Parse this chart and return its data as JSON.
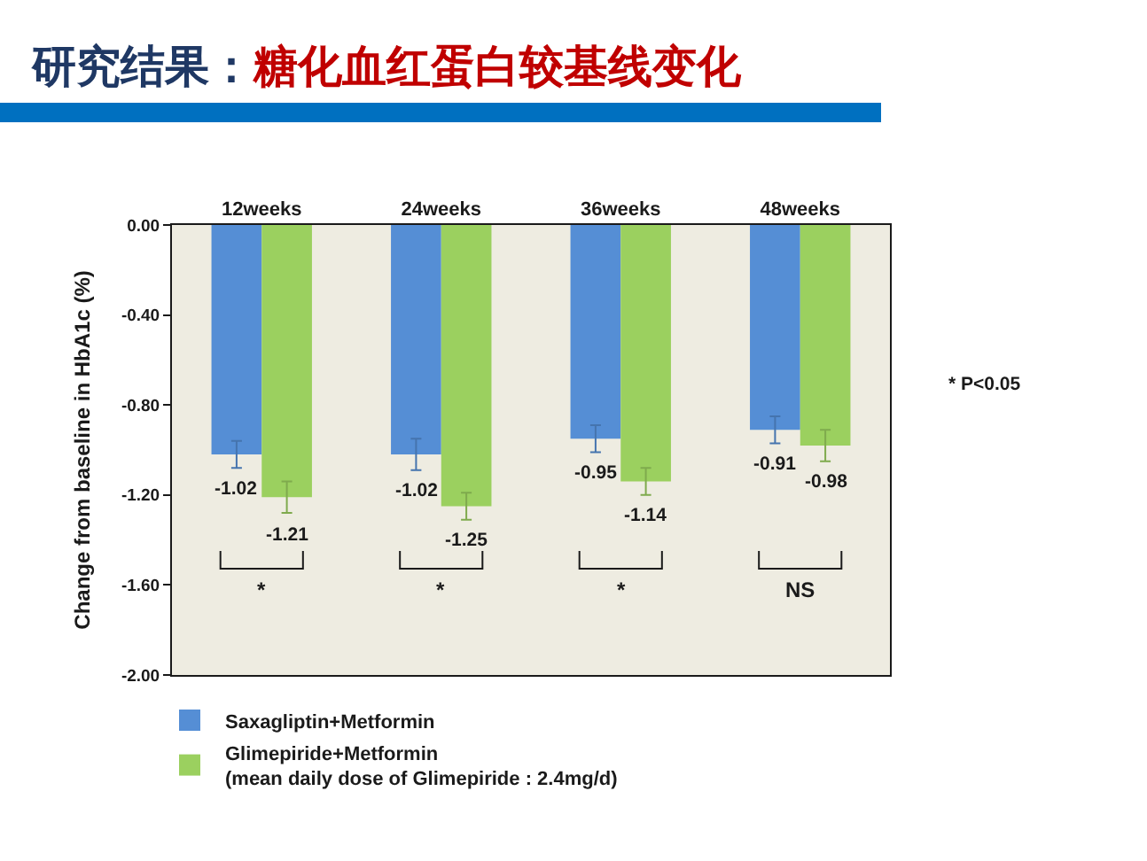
{
  "chart_data": {
    "type": "bar",
    "title": "研究结果：糖化血红蛋白较基线变化",
    "ylabel": "Change from baseline in HbA1c (%)",
    "categories": [
      "12weeks",
      "24weeks",
      "36weeks",
      "48weeks"
    ],
    "series": [
      {
        "name": "Saxagliptin+Metformin",
        "color": "#558ed5",
        "values": [
          -1.02,
          -1.02,
          -0.95,
          -0.91
        ],
        "errors": [
          0.06,
          0.07,
          0.06,
          0.06
        ]
      },
      {
        "name": "Glimepiride+Metformin\n(mean daily dose of Glimepiride : 2.4mg/d)",
        "color": "#9bd05f",
        "values": [
          -1.21,
          -1.25,
          -1.14,
          -0.98
        ],
        "errors": [
          0.07,
          0.06,
          0.06,
          0.07
        ]
      }
    ],
    "ylim": [
      -2,
      0
    ],
    "yticks": [
      {
        "value": 0,
        "label": "0.00"
      },
      {
        "value": -0.4,
        "label": "-0.40"
      },
      {
        "value": -0.8,
        "label": "-0.80"
      },
      {
        "value": -1.2,
        "label": "-1.20"
      },
      {
        "value": -1.6,
        "label": "-1.60"
      },
      {
        "value": -2,
        "label": "-2.00"
      }
    ],
    "data_labels": true,
    "legend": "bottom",
    "annotations": [
      "* P<0.05",
      "*",
      "*",
      "*",
      "NS"
    ]
  }
}
